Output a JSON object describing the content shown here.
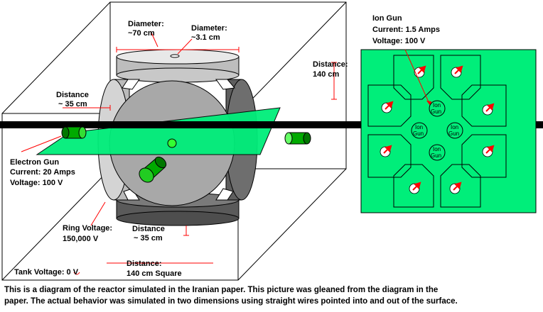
{
  "labels": {
    "diameter_large": [
      "Diameter:",
      "~70 cm"
    ],
    "diameter_small": [
      "Diameter:",
      "~3.1 cm"
    ],
    "distance_140": [
      "Distance:",
      "140 cm"
    ],
    "distance_35_left": [
      "Distance",
      "~ 35 cm"
    ],
    "distance_35_bottom": [
      "Distance",
      "~ 35 cm"
    ],
    "electron_gun": [
      "Electron Gun",
      "Current: 20 Amps",
      "Voltage: 100 V"
    ],
    "ring_voltage": [
      "Ring Voltage:",
      "150,000 V"
    ],
    "tank_distance": [
      "Distance:",
      "140 cm Square"
    ],
    "tank_voltage": "Tank Voltage: 0 V",
    "ion_gun_title": [
      "Ion Gun",
      "Current: 1.5 Amps",
      "Voltage: 100 V"
    ],
    "ion_gun_circle": [
      "Ion",
      "Gun"
    ]
  },
  "caption": [
    "This is a diagram of the reactor simulated in the Iranian paper.  This picture was gleaned from the diagram in the",
    "paper.  The actual behavior was simulated in two dimensions using straight wires pointed into and out of the surface."
  ],
  "colors": {
    "panel_green": "#00ee7a",
    "gun_green": "#00aa00",
    "arrow_red": "#ff0000",
    "metal_gray": "#c8c8c8",
    "dark_metal": "#6e6e6e"
  }
}
